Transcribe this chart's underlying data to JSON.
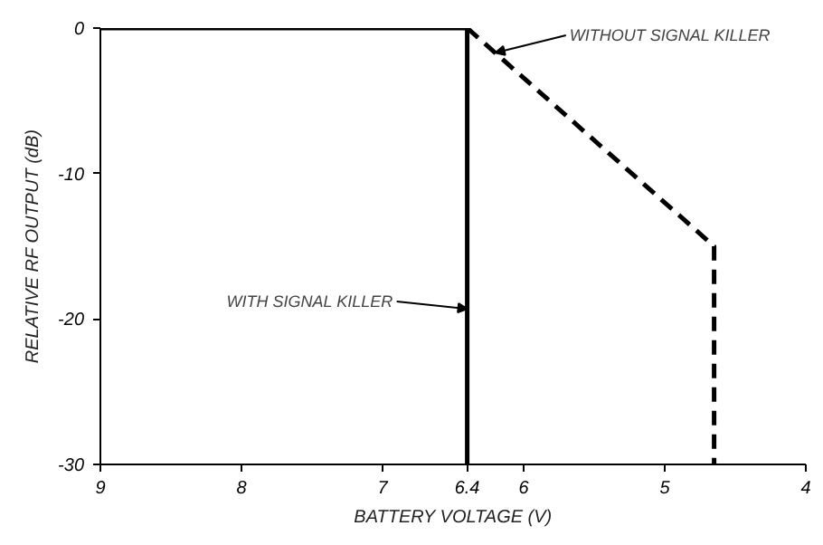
{
  "chart_data": {
    "type": "line",
    "xlabel": "BATTERY VOLTAGE (V)",
    "ylabel": "RELATIVE RF OUTPUT (dB)",
    "xlim": [
      9,
      4
    ],
    "xticks": [
      9,
      8,
      7,
      6.4,
      6,
      5,
      4
    ],
    "ylim": [
      -30,
      0
    ],
    "yticks": [
      0,
      -10,
      -20,
      -30
    ],
    "series": [
      {
        "color": "#000000",
        "line_style": "solid",
        "x": [
          9,
          6.4,
          6.4
        ],
        "values": [
          0,
          0,
          -30
        ]
      },
      {
        "color": "#000000",
        "line_style": "dashed",
        "x": [
          6.4,
          4.65,
          4.65
        ],
        "values": [
          0,
          -15,
          -30
        ]
      }
    ],
    "annotations": [
      {
        "text": "WITHOUT SIGNAL KILLER",
        "x": 6.2,
        "y": -1.7
      },
      {
        "text": "WITH SIGNAL KILLER",
        "x": 6.4,
        "y": -19.3
      }
    ],
    "grid": false
  }
}
